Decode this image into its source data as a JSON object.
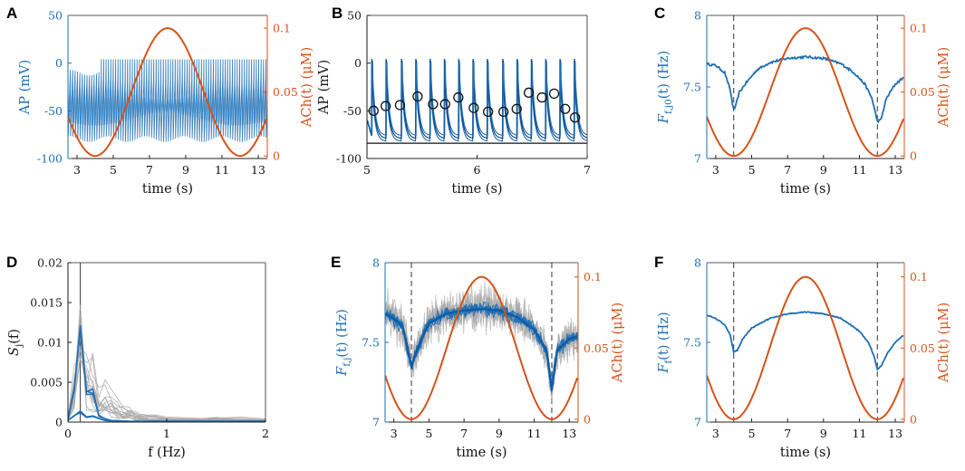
{
  "colors": {
    "blue": "#1f6fb4",
    "orange": "#d4531c",
    "gray": "#a8a8a8",
    "black": "#1a1a1a"
  },
  "chart_data": [
    {
      "id": "A",
      "panel_label": "A",
      "type": "line",
      "title": "",
      "xlabel": "time (s)",
      "xlim": [
        2.5,
        13.5
      ],
      "xticks": [
        3,
        5,
        7,
        9,
        11,
        13
      ],
      "xtick_labels": [
        "3",
        "5",
        "7",
        "9",
        "11",
        "13"
      ],
      "ylabel": "AP (mV)",
      "ylim": [
        -100,
        50
      ],
      "yticks": [
        -100,
        -50,
        0,
        50
      ],
      "ytick_labels": [
        "-100",
        "-50",
        "0",
        "50"
      ],
      "ylabel_right": "ACh(t) (μM)",
      "ylim_right": [
        -0.002,
        0.11
      ],
      "yticks_right": [
        0,
        0.05,
        0.1
      ],
      "ytick_labels_right": [
        "0",
        "0.05",
        "0.1"
      ],
      "series": [
        {
          "name": "AP",
          "axis": "left",
          "kind": "dense-oscillation",
          "frequency_hz": 7.6,
          "peak": 4,
          "trough": -82,
          "mid_band": [
            -70,
            -10
          ]
        },
        {
          "name": "ACh(t)",
          "axis": "right",
          "kind": "sinusoid",
          "min": 0,
          "max": 0.1,
          "min_at_x": 4,
          "max_at_x": 8
        }
      ]
    },
    {
      "id": "B",
      "panel_label": "B",
      "type": "line",
      "title": "",
      "xlabel": "time (s)",
      "xlim": [
        5,
        7
      ],
      "xticks": [
        5,
        6,
        7
      ],
      "xtick_labels": [
        "5",
        "6",
        "7"
      ],
      "ylabel": "AP (mV)",
      "ylim": [
        -100,
        50
      ],
      "yticks": [
        -100,
        -50,
        0,
        50
      ],
      "ytick_labels": [
        "-100",
        "-50",
        "0",
        "50"
      ],
      "reference_line_y": -84,
      "series": [
        {
          "name": "AP traces",
          "axis": "left",
          "kind": "spike-train",
          "spike_times": [
            5.04,
            5.17,
            5.31,
            5.44,
            5.57,
            5.7,
            5.83,
            5.96,
            6.09,
            6.23,
            6.36,
            6.49,
            6.62,
            6.75,
            6.88
          ],
          "peak": 4,
          "trough": -82
        },
        {
          "name": "circled points",
          "axis": "left",
          "kind": "markers",
          "x": [
            5.06,
            5.17,
            5.3,
            5.46,
            5.6,
            5.71,
            5.83,
            5.97,
            6.1,
            6.24,
            6.36,
            6.47,
            6.59,
            6.7,
            6.8,
            6.89
          ],
          "y": [
            -50,
            -45,
            -44,
            -35,
            -43,
            -43,
            -36,
            -47,
            -51,
            -51,
            -48,
            -31,
            -36,
            -32,
            -48,
            -57
          ]
        }
      ]
    },
    {
      "id": "C",
      "panel_label": "C",
      "type": "line",
      "title": "",
      "xlabel": "time (s)",
      "xlim": [
        2.5,
        13.5
      ],
      "xticks": [
        3,
        5,
        7,
        9,
        11,
        13
      ],
      "xtick_labels": [
        "3",
        "5",
        "7",
        "9",
        "11",
        "13"
      ],
      "ylabel": "F_f,j0(t) (Hz)",
      "ylabel_main": "F",
      "ylabel_sub": "f,j0",
      "ylabel_rest": "(t) (Hz)",
      "ylim": [
        7,
        8
      ],
      "yticks": [
        7,
        7.5,
        8
      ],
      "ytick_labels": [
        "7",
        "7.5",
        "8"
      ],
      "ylabel_right": "ACh(t) (μM)",
      "ylim_right": [
        -0.002,
        0.11
      ],
      "yticks_right": [
        0,
        0.05,
        0.1
      ],
      "ytick_labels_right": [
        "0",
        "0.05",
        "0.1"
      ],
      "vlines_x": [
        4,
        12
      ],
      "series": [
        {
          "name": "F_f,j0(t)",
          "axis": "left",
          "x": [
            2.5,
            3.0,
            3.5,
            3.8,
            4.0,
            4.1,
            4.3,
            4.7,
            5.3,
            6.0,
            7.0,
            8.0,
            9.0,
            10.0,
            10.7,
            11.3,
            11.7,
            12.0,
            12.2,
            12.5,
            13.0,
            13.5
          ],
          "y": [
            7.66,
            7.65,
            7.6,
            7.48,
            7.34,
            7.36,
            7.46,
            7.53,
            7.62,
            7.67,
            7.7,
            7.71,
            7.7,
            7.66,
            7.6,
            7.52,
            7.42,
            7.26,
            7.27,
            7.42,
            7.52,
            7.57
          ],
          "jitter": 0.008
        },
        {
          "name": "ACh(t)",
          "axis": "right",
          "kind": "sinusoid",
          "min": 0,
          "max": 0.1,
          "min_at_x": 4,
          "max_at_x": 8
        }
      ]
    },
    {
      "id": "D",
      "panel_label": "D",
      "type": "line",
      "title": "",
      "xlabel": "f (Hz)",
      "xlim": [
        0,
        2
      ],
      "xticks": [
        0,
        1,
        2
      ],
      "xtick_labels": [
        "0",
        "1",
        "2"
      ],
      "ylabel": "S_j(f)",
      "ylabel_main": "S",
      "ylabel_sub": "j",
      "ylabel_rest": "(f)",
      "ylim": [
        0,
        0.02
      ],
      "yticks": [
        0,
        0.005,
        0.01,
        0.015,
        0.02
      ],
      "ytick_labels": [
        "0",
        "0.005",
        "0.01",
        "0.015",
        "0.02"
      ],
      "vlines_x": [
        0.125
      ],
      "series": [
        {
          "name": "S_j(f) gray traces",
          "color": "gray",
          "x": [
            0,
            0.063,
            0.125,
            0.188,
            0.25,
            0.313,
            0.375,
            0.438,
            0.5,
            0.563,
            0.625,
            0.688,
            0.75,
            0.875,
            1.0,
            1.25,
            1.5,
            1.75,
            2.0
          ],
          "y": [
            0.0005,
            0.004,
            0.0125,
            0.005,
            0.0045,
            0.0025,
            0.003,
            0.002,
            0.0015,
            0.001,
            0.0012,
            0.0008,
            0.0006,
            0.0005,
            0.0004,
            0.0003,
            0.0004,
            0.0003,
            0.0002
          ],
          "n_traces": 14,
          "spread": 0.5
        },
        {
          "name": "S_j(f) blue",
          "color": "blue",
          "x": [
            0,
            0.063,
            0.125,
            0.188,
            0.25,
            0.313,
            0.375,
            0.438,
            0.5,
            0.625,
            0.75,
            1.0,
            1.25,
            1.5,
            1.75,
            2.0
          ],
          "y": [
            0.0003,
            0.004,
            0.0128,
            0.0035,
            0.0037,
            0.0008,
            0.0004,
            0.0002,
            0.0002,
            0.0001,
            0.0001,
            0.0001,
            0.0001,
            0.0001,
            0.0001,
            0.0001
          ]
        },
        {
          "name": "S_j(f) blue low",
          "color": "blue",
          "x": [
            0,
            0.063,
            0.125,
            0.188,
            0.25,
            0.375,
            0.5,
            1.0,
            1.5,
            2.0
          ],
          "y": [
            0.0002,
            0.0008,
            0.0013,
            0.0006,
            0.0007,
            0.0002,
            0.0001,
            0.0001,
            0.0001,
            0.0001
          ]
        }
      ]
    },
    {
      "id": "E",
      "panel_label": "E",
      "type": "line",
      "title": "",
      "xlabel": "time (s)",
      "xlim": [
        2.5,
        13.5
      ],
      "xticks": [
        3,
        5,
        7,
        9,
        11,
        13
      ],
      "xtick_labels": [
        "3",
        "5",
        "7",
        "9",
        "11",
        "13"
      ],
      "ylabel": "F_f,j(t) (Hz)",
      "ylabel_main": "F",
      "ylabel_sub": "f,j",
      "ylabel_rest": "(t) (Hz)",
      "ylim": [
        7,
        8
      ],
      "yticks": [
        7,
        7.5,
        8
      ],
      "ytick_labels": [
        "7",
        "7.5",
        "8"
      ],
      "ylabel_right": "ACh(t) (μM)",
      "ylim_right": [
        -0.002,
        0.11
      ],
      "yticks_right": [
        0,
        0.05,
        0.1
      ],
      "ytick_labels_right": [
        "0",
        "0.05",
        "0.1"
      ],
      "vlines_x": [
        4,
        12
      ],
      "series": [
        {
          "name": "F_f,j(t) mean",
          "axis": "left",
          "x": [
            2.5,
            3.0,
            3.5,
            4.0,
            4.3,
            5.0,
            6.0,
            7.0,
            8.0,
            9.0,
            10.0,
            11.0,
            11.7,
            12.0,
            12.3,
            13.0,
            13.5
          ],
          "y": [
            7.68,
            7.65,
            7.6,
            7.35,
            7.45,
            7.62,
            7.68,
            7.7,
            7.71,
            7.7,
            7.66,
            7.58,
            7.45,
            7.2,
            7.45,
            7.52,
            7.54
          ],
          "gray_noise": 0.12,
          "blue_noise": 0.04,
          "n_gray": 6,
          "n_blue": 5
        },
        {
          "name": "ACh(t)",
          "axis": "right",
          "kind": "sinusoid",
          "min": 0,
          "max": 0.1,
          "min_at_x": 4,
          "max_at_x": 8
        }
      ]
    },
    {
      "id": "F",
      "panel_label": "F",
      "type": "line",
      "title": "",
      "xlabel": "time (s)",
      "xlim": [
        2.5,
        13.5
      ],
      "xticks": [
        3,
        5,
        7,
        9,
        11,
        13
      ],
      "xtick_labels": [
        "3",
        "5",
        "7",
        "9",
        "11",
        "13"
      ],
      "ylabel": "F_f(t) (Hz)",
      "ylabel_main": "F",
      "ylabel_sub": "f",
      "ylabel_rest": "(t) (Hz)",
      "ylim": [
        7,
        8
      ],
      "yticks": [
        7,
        7.5,
        8
      ],
      "ytick_labels": [
        "7",
        "7.5",
        "8"
      ],
      "ylabel_right": "ACh(t) (μM)",
      "ylim_right": [
        -0.002,
        0.11
      ],
      "yticks_right": [
        0,
        0.05,
        0.1
      ],
      "ytick_labels_right": [
        "0",
        "0.05",
        "0.1"
      ],
      "vlines_x": [
        4,
        12
      ],
      "series": [
        {
          "name": "F_f(t)",
          "axis": "left",
          "x": [
            2.5,
            3.0,
            3.5,
            3.8,
            4.0,
            4.2,
            4.5,
            5.0,
            6.0,
            7.0,
            8.0,
            9.0,
            10.0,
            11.0,
            11.5,
            11.8,
            12.0,
            12.2,
            12.6,
            13.0,
            13.5
          ],
          "y": [
            7.67,
            7.65,
            7.61,
            7.55,
            7.44,
            7.45,
            7.52,
            7.59,
            7.65,
            7.68,
            7.69,
            7.68,
            7.65,
            7.57,
            7.5,
            7.42,
            7.33,
            7.35,
            7.44,
            7.5,
            7.55
          ],
          "jitter": 0.003
        },
        {
          "name": "ACh(t)",
          "axis": "right",
          "kind": "sinusoid",
          "min": 0,
          "max": 0.1,
          "min_at_x": 4,
          "max_at_x": 8
        }
      ]
    }
  ]
}
